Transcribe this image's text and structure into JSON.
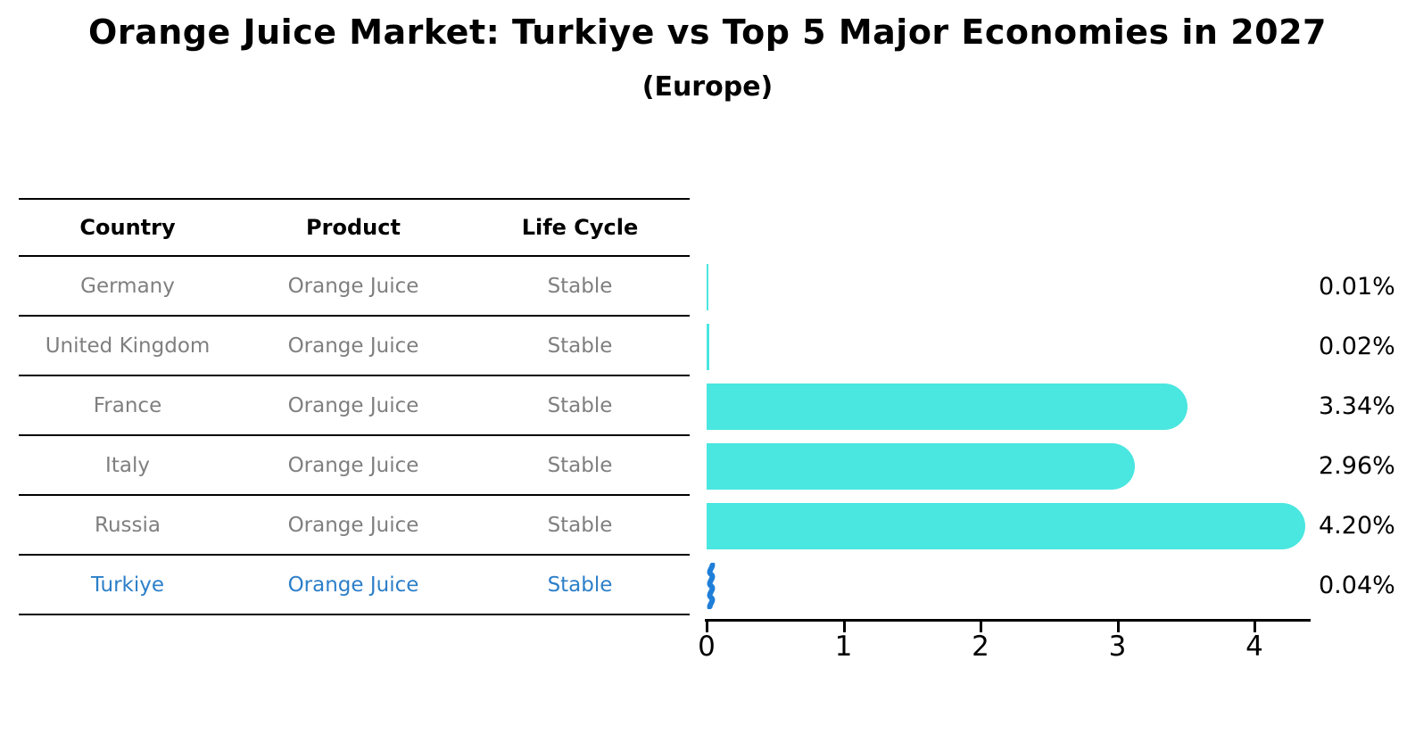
{
  "title": "Orange Juice Market: Turkiye vs Top 5 Major Economies in 2027",
  "subtitle": "(Europe)",
  "table": {
    "headers": [
      "Country",
      "Product",
      "Life Cycle"
    ],
    "rows": [
      {
        "country": "Germany",
        "product": "Orange Juice",
        "life_cycle": "Stable",
        "highlight": false
      },
      {
        "country": "United Kingdom",
        "product": "Orange Juice",
        "life_cycle": "Stable",
        "highlight": false
      },
      {
        "country": "France",
        "product": "Orange Juice",
        "life_cycle": "Stable",
        "highlight": false
      },
      {
        "country": "Italy",
        "product": "Orange Juice",
        "life_cycle": "Stable",
        "highlight": false
      },
      {
        "country": "Russia",
        "product": "Orange Juice",
        "life_cycle": "Stable",
        "highlight": false
      },
      {
        "country": "Turkiye",
        "product": "Orange Juice",
        "life_cycle": "Stable",
        "highlight": true
      }
    ]
  },
  "chart_data": {
    "type": "bar",
    "orientation": "horizontal",
    "title": "Orange Juice Market: Turkiye vs Top 5 Major Economies in 2027",
    "subtitle": "(Europe)",
    "categories": [
      "Germany",
      "United Kingdom",
      "France",
      "Italy",
      "Russia",
      "Turkiye"
    ],
    "values": [
      0.01,
      0.02,
      3.34,
      2.96,
      4.2,
      0.04
    ],
    "value_labels": [
      "0.01%",
      "0.02%",
      "3.34%",
      "2.96%",
      "4.20%",
      "0.04%"
    ],
    "highlight_index": 5,
    "xlim": [
      0,
      4.4
    ],
    "x_ticks": [
      "0",
      "1",
      "2",
      "3",
      "4"
    ],
    "grid": false,
    "legend": false
  },
  "colors": {
    "bar": "#4ae6e0",
    "highlight_bar": "#1f7fd8",
    "row_text": "#7f7f7f",
    "header_text": "#000000",
    "highlight_text": "#2c7fc9",
    "axis": "#000000"
  }
}
